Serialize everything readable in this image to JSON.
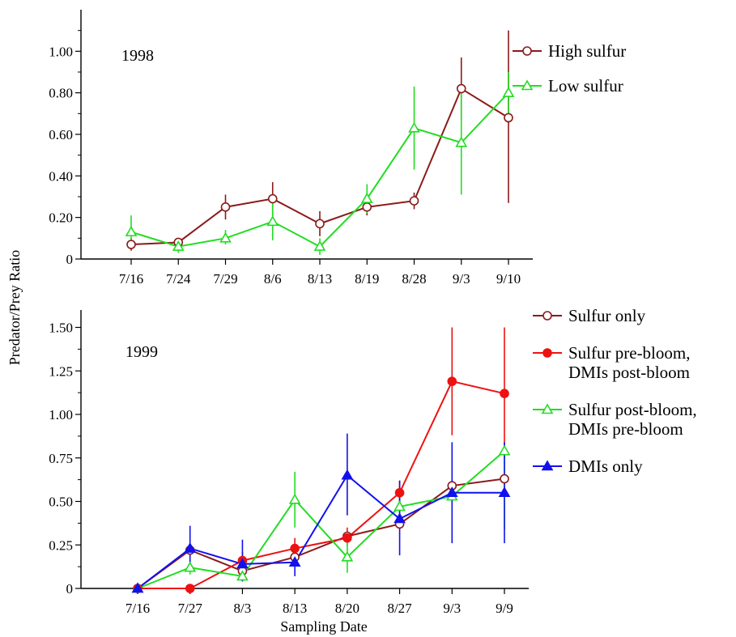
{
  "figure": {
    "ylabel": "Predator/Prey Ratio",
    "xlabel": "Sampling Date"
  },
  "chart_data": [
    {
      "type": "line",
      "panel_label": "1998",
      "categories": [
        "7/16",
        "7/24",
        "7/29",
        "8/6",
        "8/13",
        "8/19",
        "8/28",
        "9/3",
        "9/10"
      ],
      "ylim": [
        0,
        1.2
      ],
      "yticks": [
        "0",
        "0.20",
        "0.40",
        "0.60",
        "0.80",
        "1.00"
      ],
      "ytick_values": [
        0,
        0.2,
        0.4,
        0.6,
        0.8,
        1.0
      ],
      "legend_position": "top-right",
      "series": [
        {
          "name": "High sulfur",
          "color": "#8b1a1a",
          "marker": "open-circle",
          "values": [
            0.07,
            0.08,
            0.25,
            0.29,
            0.17,
            0.25,
            0.28,
            0.82,
            0.68
          ],
          "err_low": [
            0.04,
            0.06,
            0.19,
            0.21,
            0.11,
            0.21,
            0.24,
            0.67,
            0.27
          ],
          "err_high": [
            0.1,
            0.1,
            0.31,
            0.37,
            0.23,
            0.29,
            0.32,
            0.97,
            1.1
          ]
        },
        {
          "name": "Low sulfur",
          "color": "#22dd22",
          "marker": "open-triangle",
          "values": [
            0.13,
            0.06,
            0.1,
            0.18,
            0.06,
            0.29,
            0.63,
            0.56,
            0.8
          ],
          "err_low": [
            0.05,
            0.03,
            0.07,
            0.09,
            0.02,
            0.22,
            0.43,
            0.31,
            0.7
          ],
          "err_high": [
            0.21,
            0.09,
            0.14,
            0.27,
            0.1,
            0.36,
            0.83,
            0.82,
            0.9
          ]
        }
      ]
    },
    {
      "type": "line",
      "panel_label": "1999",
      "categories": [
        "7/16",
        "7/27",
        "8/3",
        "8/13",
        "8/20",
        "8/27",
        "9/3",
        "9/9"
      ],
      "ylim": [
        0,
        1.6
      ],
      "yticks": [
        "0",
        "0.25",
        "0.50",
        "0.75",
        "1.00",
        "1.25",
        "1.50"
      ],
      "ytick_values": [
        0,
        0.25,
        0.5,
        0.75,
        1.0,
        1.25,
        1.5
      ],
      "legend_position": "top-right",
      "series": [
        {
          "name": [
            "Sulfur only"
          ],
          "color": "#8b1a1a",
          "marker": "open-circle",
          "values": [
            0.0,
            0.22,
            0.1,
            0.18,
            0.3,
            0.37,
            0.59,
            0.63
          ],
          "err_low": [
            0.0,
            0.22,
            0.1,
            0.18,
            0.3,
            0.37,
            0.59,
            0.63
          ],
          "err_high": [
            0.0,
            0.22,
            0.1,
            0.18,
            0.3,
            0.37,
            0.59,
            0.63
          ]
        },
        {
          "name": [
            "Sulfur pre-bloom,",
            "DMIs post-bloom"
          ],
          "color": "#ee1111",
          "marker": "filled-circle",
          "values": [
            0.0,
            0.0,
            0.16,
            0.23,
            0.29,
            0.55,
            1.19,
            1.12
          ],
          "err_low": [
            0.0,
            0.0,
            0.11,
            0.18,
            0.24,
            0.48,
            0.88,
            0.75
          ],
          "err_high": [
            0.0,
            0.0,
            0.21,
            0.29,
            0.35,
            0.62,
            1.5,
            1.5
          ]
        },
        {
          "name": [
            "Sulfur post-bloom,",
            "DMIs pre-bloom"
          ],
          "color": "#22dd22",
          "marker": "open-triangle",
          "values": [
            0.0,
            0.12,
            0.07,
            0.51,
            0.18,
            0.47,
            0.53,
            0.79
          ],
          "err_low": [
            0.0,
            0.08,
            0.04,
            0.35,
            0.09,
            0.42,
            0.48,
            0.34
          ],
          "err_high": [
            0.0,
            0.16,
            0.1,
            0.67,
            0.27,
            0.52,
            0.58,
            0.79
          ]
        },
        {
          "name": [
            "DMIs only"
          ],
          "color": "#1111ee",
          "marker": "filled-triangle",
          "values": [
            0.0,
            0.23,
            0.14,
            0.15,
            0.65,
            0.4,
            0.55,
            0.55
          ],
          "err_low": [
            0.0,
            0.12,
            0.04,
            0.07,
            0.42,
            0.19,
            0.26,
            0.26
          ],
          "err_high": [
            0.0,
            0.36,
            0.28,
            0.23,
            0.89,
            0.62,
            0.84,
            0.84
          ]
        }
      ]
    }
  ]
}
